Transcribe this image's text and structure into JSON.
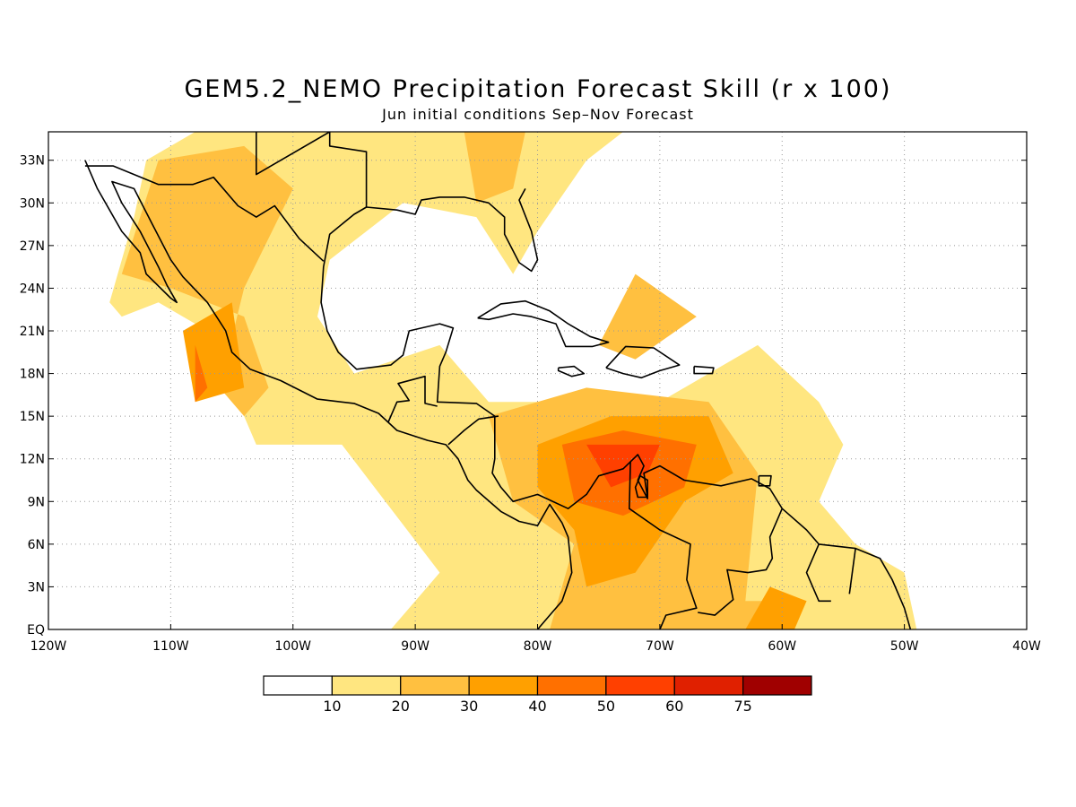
{
  "title": "GEM5.2_NEMO Precipitation Forecast Skill (r x 100)",
  "subtitle": "Jun initial conditions  Sep–Nov Forecast",
  "map": {
    "lon_range": [
      -120,
      -40
    ],
    "lat_range": [
      0,
      35
    ],
    "grid": "dotted",
    "x_ticks": [
      {
        "lon": -120,
        "label": "120W"
      },
      {
        "lon": -110,
        "label": "110W"
      },
      {
        "lon": -100,
        "label": "100W"
      },
      {
        "lon": -90,
        "label": "90W"
      },
      {
        "lon": -80,
        "label": "80W"
      },
      {
        "lon": -70,
        "label": "70W"
      },
      {
        "lon": -60,
        "label": "60W"
      },
      {
        "lon": -50,
        "label": "50W"
      },
      {
        "lon": -40,
        "label": "40W"
      }
    ],
    "y_ticks": [
      {
        "lat": 0,
        "label": "EQ"
      },
      {
        "lat": 3,
        "label": "3N"
      },
      {
        "lat": 6,
        "label": "6N"
      },
      {
        "lat": 9,
        "label": "9N"
      },
      {
        "lat": 12,
        "label": "12N"
      },
      {
        "lat": 15,
        "label": "15N"
      },
      {
        "lat": 18,
        "label": "18N"
      },
      {
        "lat": 21,
        "label": "21N"
      },
      {
        "lat": 24,
        "label": "24N"
      },
      {
        "lat": 27,
        "label": "27N"
      },
      {
        "lat": 30,
        "label": "30N"
      },
      {
        "lat": 33,
        "label": "33N"
      }
    ]
  },
  "colorbar": {
    "colors": [
      "#ffffff",
      "#ffe680",
      "#ffc040",
      "#ffa000",
      "#ff7000",
      "#ff4000",
      "#e02000",
      "#a00000"
    ],
    "labels": [
      "10",
      "20",
      "30",
      "40",
      "50",
      "60",
      "75"
    ]
  },
  "skill_regions": [
    {
      "level": 1,
      "lonlat": [
        [
          -115,
          23
        ],
        [
          -113,
          29
        ],
        [
          -112,
          33
        ],
        [
          -108,
          35
        ],
        [
          -90,
          35
        ],
        [
          -85,
          35
        ],
        [
          -73,
          35
        ],
        [
          -76,
          33
        ],
        [
          -80,
          28
        ],
        [
          -82,
          25
        ],
        [
          -85,
          29
        ],
        [
          -91,
          30
        ],
        [
          -97,
          26
        ],
        [
          -98,
          22
        ],
        [
          -95,
          18
        ],
        [
          -88,
          20
        ],
        [
          -84,
          16
        ],
        [
          -70,
          16
        ],
        [
          -62,
          20
        ],
        [
          -57,
          16
        ],
        [
          -55,
          13
        ],
        [
          -57,
          9
        ],
        [
          -54,
          6
        ],
        [
          -50,
          4
        ],
        [
          -49,
          0
        ],
        [
          -92,
          0
        ],
        [
          -88,
          4
        ],
        [
          -96,
          13
        ],
        [
          -103,
          13
        ],
        [
          -105,
          17
        ],
        [
          -107,
          21
        ],
        [
          -111,
          23
        ],
        [
          -114,
          22
        ]
      ]
    },
    {
      "level": 2,
      "lonlat": [
        [
          -114,
          25
        ],
        [
          -111,
          33
        ],
        [
          -104,
          34
        ],
        [
          -100,
          31
        ],
        [
          -104,
          24
        ],
        [
          -106,
          17
        ],
        [
          -104,
          15
        ],
        [
          -102,
          17
        ],
        [
          -104,
          22
        ],
        [
          -110,
          24
        ]
      ]
    },
    {
      "level": 2,
      "lonlat": [
        [
          -86,
          35
        ],
        [
          -81,
          35
        ],
        [
          -82,
          31
        ],
        [
          -85,
          30
        ]
      ]
    },
    {
      "level": 2,
      "lonlat": [
        [
          -72,
          25
        ],
        [
          -67,
          22
        ],
        [
          -72,
          19
        ],
        [
          -75,
          20
        ]
      ]
    },
    {
      "level": 2,
      "lonlat": [
        [
          -84,
          15
        ],
        [
          -76,
          17
        ],
        [
          -66,
          16
        ],
        [
          -62,
          11
        ],
        [
          -63,
          2
        ],
        [
          -58,
          2
        ],
        [
          -59,
          0
        ],
        [
          -79,
          0
        ],
        [
          -77,
          6
        ],
        [
          -82,
          9
        ]
      ]
    },
    {
      "level": 3,
      "lonlat": [
        [
          -80,
          13
        ],
        [
          -74,
          15
        ],
        [
          -66,
          15
        ],
        [
          -64,
          11
        ],
        [
          -68,
          9
        ],
        [
          -72,
          4
        ],
        [
          -76,
          3
        ],
        [
          -77,
          7
        ],
        [
          -80,
          10
        ]
      ]
    },
    {
      "level": 3,
      "lonlat": [
        [
          -109,
          21
        ],
        [
          -105,
          23
        ],
        [
          -104,
          17
        ],
        [
          -108,
          16
        ]
      ]
    },
    {
      "level": 3,
      "lonlat": [
        [
          -61,
          3
        ],
        [
          -58,
          2
        ],
        [
          -59,
          0
        ],
        [
          -63,
          0
        ]
      ]
    },
    {
      "level": 4,
      "lonlat": [
        [
          -78,
          13
        ],
        [
          -73,
          14
        ],
        [
          -67,
          13
        ],
        [
          -68,
          10
        ],
        [
          -73,
          8
        ],
        [
          -77,
          9
        ]
      ]
    },
    {
      "level": 4,
      "lonlat": [
        [
          -108,
          20
        ],
        [
          -107,
          17
        ],
        [
          -108,
          16
        ]
      ]
    },
    {
      "level": 5,
      "lonlat": [
        [
          -76,
          13
        ],
        [
          -70,
          13
        ],
        [
          -71,
          11
        ],
        [
          -74,
          10
        ]
      ]
    }
  ],
  "coastlines": [
    {
      "name": "north-america-pacific",
      "lonlat": [
        [
          -117,
          33
        ],
        [
          -116,
          31
        ],
        [
          -115,
          29.5
        ],
        [
          -114,
          28
        ],
        [
          -112.5,
          26.5
        ],
        [
          -112,
          25
        ],
        [
          -110,
          23.3
        ],
        [
          -109.5,
          23
        ],
        [
          -110.3,
          24.2
        ],
        [
          -111,
          25.5
        ],
        [
          -112.5,
          28
        ],
        [
          -114,
          30
        ],
        [
          -114.8,
          31.5
        ],
        [
          -113,
          31
        ],
        [
          -111.5,
          28.5
        ],
        [
          -110,
          26
        ],
        [
          -109,
          24.8
        ],
        [
          -107,
          23
        ],
        [
          -105.5,
          21
        ],
        [
          -105,
          19.5
        ],
        [
          -103.5,
          18.3
        ],
        [
          -101,
          17.5
        ],
        [
          -98,
          16.2
        ],
        [
          -95,
          15.9
        ],
        [
          -93,
          15.2
        ],
        [
          -91.5,
          14
        ],
        [
          -89,
          13.3
        ],
        [
          -87.5,
          13
        ],
        [
          -86.5,
          12
        ],
        [
          -85.7,
          10.5
        ],
        [
          -85,
          9.8
        ],
        [
          -83,
          8.3
        ],
        [
          -81.5,
          7.6
        ],
        [
          -80,
          7.3
        ],
        [
          -79,
          8.8
        ],
        [
          -78,
          7.5
        ],
        [
          -77.5,
          6.5
        ],
        [
          -77.2,
          4
        ],
        [
          -78,
          2
        ],
        [
          -79,
          1
        ],
        [
          -80,
          0
        ]
      ]
    },
    {
      "name": "gulf-caribbean-coast",
      "lonlat": [
        [
          -81,
          31
        ],
        [
          -81.5,
          30.2
        ],
        [
          -80.5,
          28
        ],
        [
          -80,
          26
        ],
        [
          -80.5,
          25.2
        ],
        [
          -81.5,
          25.8
        ],
        [
          -82.7,
          27.8
        ],
        [
          -82.7,
          29
        ],
        [
          -84,
          30
        ],
        [
          -86,
          30.4
        ],
        [
          -88,
          30.4
        ],
        [
          -89.5,
          30.2
        ],
        [
          -90,
          29.2
        ],
        [
          -91.5,
          29.5
        ],
        [
          -94,
          29.7
        ],
        [
          -95,
          29.2
        ],
        [
          -97,
          27.8
        ],
        [
          -97.5,
          25.5
        ],
        [
          -97.7,
          23
        ],
        [
          -97.2,
          21
        ],
        [
          -96.3,
          19.5
        ],
        [
          -94.8,
          18.3
        ],
        [
          -92,
          18.6
        ],
        [
          -91,
          19.3
        ],
        [
          -90.5,
          21
        ],
        [
          -88,
          21.5
        ],
        [
          -86.9,
          21.2
        ],
        [
          -87.5,
          19.5
        ],
        [
          -88,
          18.5
        ],
        [
          -88.2,
          16
        ],
        [
          -85,
          15.9
        ],
        [
          -83.5,
          15
        ],
        [
          -83.5,
          12
        ],
        [
          -83.7,
          11
        ],
        [
          -83,
          10
        ],
        [
          -82,
          9
        ],
        [
          -80,
          9.5
        ],
        [
          -77.5,
          8.5
        ],
        [
          -76,
          9.5
        ],
        [
          -75,
          10.8
        ],
        [
          -73,
          11.3
        ],
        [
          -71.8,
          12.3
        ],
        [
          -71.3,
          11.5
        ],
        [
          -71.8,
          10.5
        ],
        [
          -71,
          9.2
        ],
        [
          -71.3,
          11
        ],
        [
          -70,
          11.5
        ],
        [
          -68,
          10.5
        ],
        [
          -65,
          10.1
        ],
        [
          -62.5,
          10.6
        ],
        [
          -61,
          9.9
        ],
        [
          -60,
          8.5
        ],
        [
          -58,
          7
        ],
        [
          -57,
          6
        ],
        [
          -54,
          5.7
        ],
        [
          -52,
          5
        ],
        [
          -51,
          3.5
        ],
        [
          -50,
          1.5
        ],
        [
          -49.5,
          0
        ]
      ]
    },
    {
      "name": "cuba",
      "lonlat": [
        [
          -84.9,
          21.9
        ],
        [
          -83,
          22.9
        ],
        [
          -81,
          23.1
        ],
        [
          -79,
          22.4
        ],
        [
          -77.5,
          21.5
        ],
        [
          -75.7,
          20.6
        ],
        [
          -74.2,
          20.2
        ],
        [
          -75.5,
          19.9
        ],
        [
          -77.7,
          19.9
        ],
        [
          -78.5,
          21.5
        ],
        [
          -80.5,
          22
        ],
        [
          -82,
          22.2
        ],
        [
          -84,
          21.8
        ],
        [
          -84.9,
          21.9
        ]
      ]
    },
    {
      "name": "hispaniola",
      "lonlat": [
        [
          -74.4,
          18.4
        ],
        [
          -72.8,
          19.9
        ],
        [
          -70.5,
          19.8
        ],
        [
          -68.4,
          18.6
        ],
        [
          -70,
          18.2
        ],
        [
          -71.5,
          17.7
        ],
        [
          -73,
          18
        ],
        [
          -74.4,
          18.4
        ]
      ]
    },
    {
      "name": "jamaica",
      "lonlat": [
        [
          -78.3,
          18.4
        ],
        [
          -77,
          18.5
        ],
        [
          -76.2,
          18
        ],
        [
          -77.2,
          17.8
        ],
        [
          -78.3,
          18.2
        ],
        [
          -78.3,
          18.4
        ]
      ]
    },
    {
      "name": "puerto-rico",
      "lonlat": [
        [
          -67.2,
          18.5
        ],
        [
          -65.6,
          18.4
        ],
        [
          -65.7,
          18
        ],
        [
          -67.2,
          18
        ],
        [
          -67.2,
          18.5
        ]
      ]
    },
    {
      "name": "trinidad",
      "lonlat": [
        [
          -61.9,
          10.8
        ],
        [
          -60.9,
          10.8
        ],
        [
          -61,
          10.1
        ],
        [
          -61.9,
          10.1
        ],
        [
          -61.9,
          10.8
        ]
      ]
    },
    {
      "name": "lake-maracaibo",
      "lonlat": [
        [
          -71.6,
          10.8
        ],
        [
          -71,
          10.5
        ],
        [
          -71,
          9.3
        ],
        [
          -71.8,
          9.3
        ],
        [
          -72,
          10
        ],
        [
          -71.6,
          10.8
        ]
      ]
    },
    {
      "name": "us-mexico-border",
      "lonlat": [
        [
          -117,
          32.6
        ],
        [
          -114.7,
          32.6
        ],
        [
          -111,
          31.3
        ],
        [
          -108.2,
          31.3
        ],
        [
          -106.5,
          31.8
        ],
        [
          -104.5,
          29.8
        ],
        [
          -103,
          29
        ],
        [
          -101.5,
          29.8
        ],
        [
          -99.5,
          27.5
        ],
        [
          -97.5,
          25.9
        ]
      ]
    },
    {
      "name": "guatemala-border",
      "lonlat": [
        [
          -92.2,
          14.6
        ],
        [
          -91.5,
          16
        ],
        [
          -90.5,
          16.1
        ],
        [
          -91.4,
          17.3
        ],
        [
          -89.2,
          17.8
        ],
        [
          -89.2,
          15.9
        ],
        [
          -88.2,
          15.7
        ]
      ]
    },
    {
      "name": "nicaragua-border",
      "lonlat": [
        [
          -87.3,
          13
        ],
        [
          -86,
          14
        ],
        [
          -84.8,
          14.8
        ],
        [
          -83.2,
          15
        ]
      ]
    },
    {
      "name": "colombia-venezuela-border",
      "lonlat": [
        [
          -72.4,
          11.8
        ],
        [
          -72.5,
          8.5
        ],
        [
          -70,
          7
        ],
        [
          -67.5,
          6
        ],
        [
          -67.8,
          3.5
        ],
        [
          -67,
          1.5
        ],
        [
          -69.5,
          1
        ],
        [
          -70,
          0
        ]
      ]
    },
    {
      "name": "venezuela-guyana-border",
      "lonlat": [
        [
          -60,
          8.5
        ],
        [
          -61,
          6.5
        ],
        [
          -60.8,
          5
        ],
        [
          -61.3,
          4.2
        ],
        [
          -62.8,
          4
        ],
        [
          -64.5,
          4.2
        ],
        [
          -64,
          2.1
        ],
        [
          -65.5,
          1
        ],
        [
          -66.9,
          1.2
        ]
      ]
    },
    {
      "name": "guianas-borders",
      "lonlat": [
        [
          -57,
          6
        ],
        [
          -58,
          4
        ],
        [
          -57,
          2
        ],
        [
          -56,
          2
        ]
      ]
    },
    {
      "name": "suriname-guiana-border",
      "lonlat": [
        [
          -54,
          5.7
        ],
        [
          -54.5,
          2.5
        ]
      ]
    },
    {
      "name": "us-states-north",
      "lonlat": [
        [
          -103,
          35
        ],
        [
          -103,
          32
        ],
        [
          -97,
          35
        ],
        [
          -97,
          34
        ],
        [
          -94,
          33.6
        ],
        [
          -94,
          29.7
        ]
      ]
    }
  ]
}
